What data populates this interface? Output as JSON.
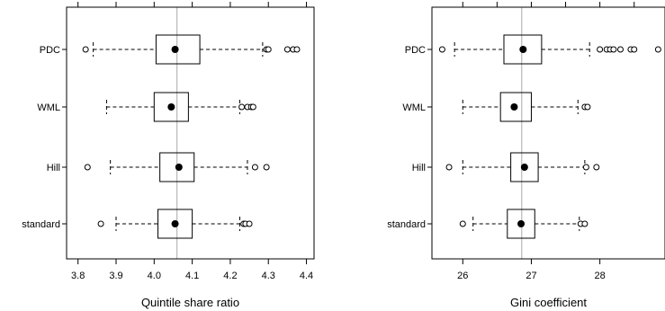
{
  "chart_data": [
    {
      "type": "boxplot",
      "orientation": "horizontal",
      "xlabel": "Quintile share ratio",
      "xlim": [
        3.77,
        4.42
      ],
      "xticks": [
        3.8,
        3.9,
        4.0,
        4.1,
        4.2,
        4.3,
        4.4
      ],
      "xtick_labels": [
        "3.8",
        "3.9",
        "4.0",
        "4.1",
        "4.2",
        "4.3",
        "4.4"
      ],
      "top_ticks": [
        3.8,
        3.9,
        4.0,
        4.1,
        4.2,
        4.3,
        4.4
      ],
      "reference_line": 4.06,
      "categories": [
        "standard",
        "Hill",
        "WML",
        "PDC"
      ],
      "boxes": [
        {
          "category": "standard",
          "whisker_low": 3.9,
          "q1": 4.01,
          "mean": 4.055,
          "q3": 4.1,
          "whisker_high": 4.225,
          "outliers": [
            3.86,
            4.235,
            4.24,
            4.25
          ]
        },
        {
          "category": "Hill",
          "whisker_low": 3.885,
          "q1": 4.015,
          "mean": 4.065,
          "q3": 4.105,
          "whisker_high": 4.245,
          "outliers": [
            3.825,
            4.265,
            4.295
          ]
        },
        {
          "category": "WML",
          "whisker_low": 3.875,
          "q1": 4.0,
          "mean": 4.045,
          "q3": 4.09,
          "whisker_high": 4.225,
          "outliers": [
            4.23,
            4.245,
            4.255,
            4.26
          ]
        },
        {
          "category": "PDC",
          "whisker_low": 3.84,
          "q1": 4.005,
          "mean": 4.055,
          "q3": 4.12,
          "whisker_high": 4.285,
          "outliers": [
            3.82,
            4.295,
            4.3,
            4.35,
            4.365,
            4.375
          ]
        }
      ]
    },
    {
      "type": "boxplot",
      "orientation": "horizontal",
      "xlabel": "Gini coefficient",
      "xlim": [
        25.55,
        28.95
      ],
      "xticks": [
        26,
        27,
        28
      ],
      "xtick_labels": [
        "26",
        "27",
        "28"
      ],
      "top_ticks": [
        25.5,
        26.0,
        26.5,
        27.0,
        27.5,
        28.0,
        28.5
      ],
      "reference_line": 26.86,
      "categories": [
        "standard",
        "Hill",
        "WML",
        "PDC"
      ],
      "boxes": [
        {
          "category": "standard",
          "whisker_low": 26.15,
          "q1": 26.65,
          "mean": 26.85,
          "q3": 27.05,
          "whisker_high": 27.7,
          "outliers": [
            26.0,
            27.72,
            27.78
          ]
        },
        {
          "category": "Hill",
          "whisker_low": 26.0,
          "q1": 26.7,
          "mean": 26.9,
          "q3": 27.1,
          "whisker_high": 27.78,
          "outliers": [
            25.8,
            27.8,
            27.95
          ]
        },
        {
          "category": "WML",
          "whisker_low": 26.0,
          "q1": 26.55,
          "mean": 26.75,
          "q3": 27.0,
          "whisker_high": 27.68,
          "outliers": [
            27.78,
            27.82
          ]
        },
        {
          "category": "PDC",
          "whisker_low": 25.88,
          "q1": 26.6,
          "mean": 26.88,
          "q3": 27.15,
          "whisker_high": 27.85,
          "outliers": [
            25.7,
            28.0,
            28.1,
            28.15,
            28.2,
            28.3,
            28.45,
            28.5,
            28.85
          ]
        }
      ]
    }
  ]
}
